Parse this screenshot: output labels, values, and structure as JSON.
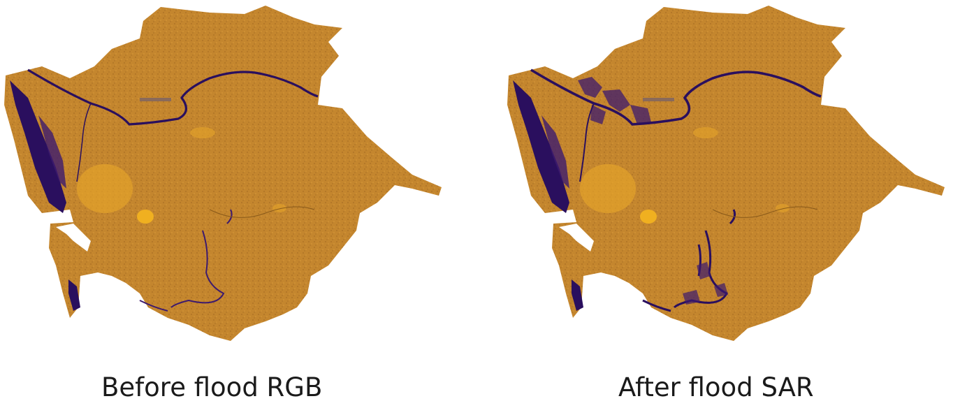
{
  "figure": {
    "panels": [
      {
        "caption": "Before flood RGB",
        "flood_extent": "baseline"
      },
      {
        "caption": "After flood SAR",
        "flood_extent": "expanded"
      }
    ]
  },
  "colors": {
    "land": "#c4862e",
    "land_dark": "#a86d24",
    "land_light": "#d99a3a",
    "urban": "#f0b020",
    "water": "#2a0f5e",
    "water_mid": "#3d1a6e",
    "background": "#ffffff"
  }
}
